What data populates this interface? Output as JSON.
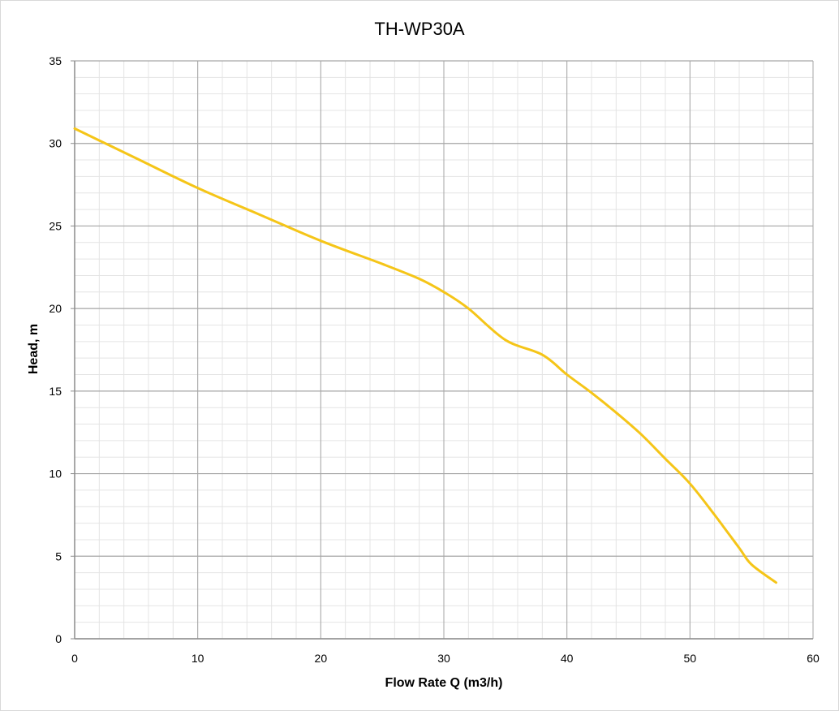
{
  "chart_data": {
    "type": "line",
    "title": "TH-WP30A",
    "xlabel": "Flow Rate Q (m3/h)",
    "ylabel": "Head, m",
    "xlim": [
      0,
      60
    ],
    "ylim": [
      0,
      35
    ],
    "x_ticks": [
      0,
      10,
      20,
      30,
      40,
      50,
      60
    ],
    "y_ticks": [
      0,
      5,
      10,
      15,
      20,
      25,
      30,
      35
    ],
    "x_tick_labels": [
      "0",
      "10",
      "20",
      "30",
      "40",
      "50",
      "60"
    ],
    "y_tick_labels": [
      "0",
      "5",
      "10",
      "15",
      "20",
      "25",
      "30",
      "35"
    ],
    "grid": true,
    "legend": "none",
    "series": [
      {
        "color": "#f5c518",
        "x": [
          0,
          5,
          10,
          15,
          20,
          25,
          28,
          30,
          32,
          35,
          38,
          40,
          42,
          44,
          46,
          48,
          50,
          52,
          54,
          55,
          57
        ],
        "y": [
          30.9,
          29.1,
          27.3,
          25.7,
          24.1,
          22.7,
          21.8,
          21.0,
          20.0,
          18.1,
          17.2,
          16.0,
          14.9,
          13.7,
          12.4,
          10.9,
          9.4,
          7.5,
          5.5,
          4.5,
          3.4
        ]
      }
    ]
  }
}
